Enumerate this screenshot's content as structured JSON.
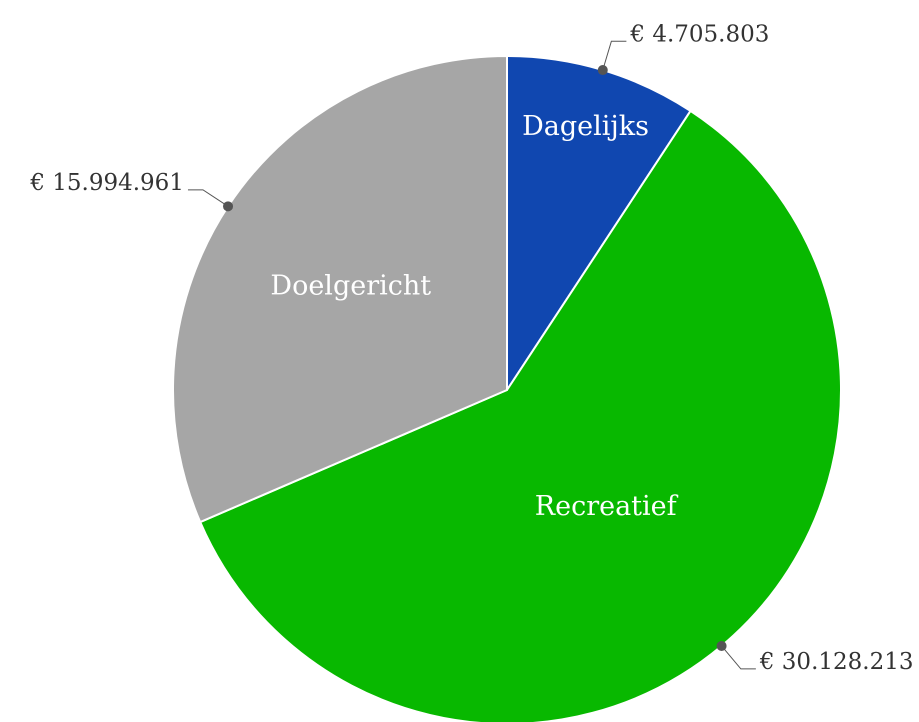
{
  "chart_data": {
    "type": "pie",
    "categories": [
      "Dagelijks",
      "Recreatief",
      "Doelgericht"
    ],
    "values": [
      4705803,
      30128213,
      15994961
    ],
    "value_labels": [
      "€ 4.705.803",
      "€ 30.128.213",
      "€ 15.994.961"
    ],
    "colors": [
      "#1047b0",
      "#08b800",
      "#a6a6a6"
    ]
  }
}
